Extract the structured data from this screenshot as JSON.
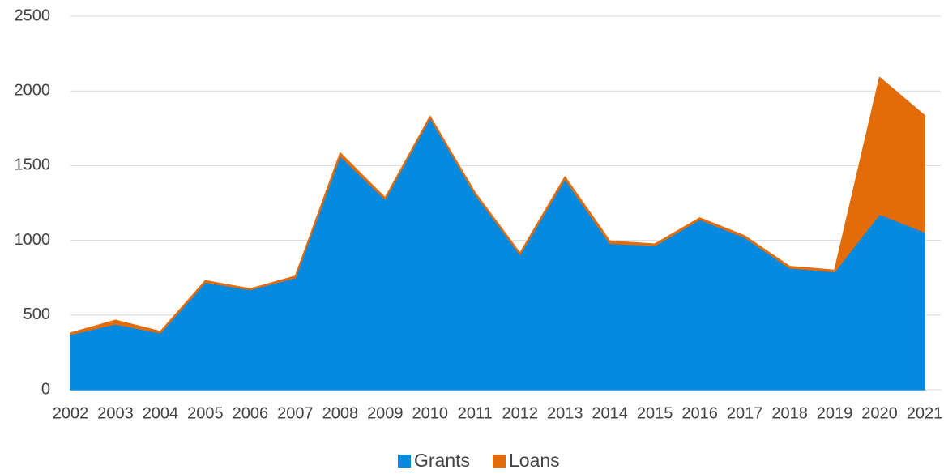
{
  "chart_data": {
    "type": "area",
    "stacked": true,
    "categories": [
      "2002",
      "2003",
      "2004",
      "2005",
      "2006",
      "2007",
      "2008",
      "2009",
      "2010",
      "2011",
      "2012",
      "2013",
      "2014",
      "2015",
      "2016",
      "2017",
      "2018",
      "2019",
      "2020",
      "2021"
    ],
    "series": [
      {
        "name": "Grants",
        "color": "#058ae0",
        "values": [
          370,
          440,
          380,
          720,
          670,
          750,
          1565,
          1275,
          1820,
          1310,
          905,
          1410,
          980,
          965,
          1140,
          1020,
          815,
          790,
          1175,
          1055
        ]
      },
      {
        "name": "Loans",
        "color": "#e36c0a",
        "values": [
          10,
          25,
          10,
          10,
          5,
          10,
          20,
          10,
          10,
          10,
          10,
          15,
          15,
          10,
          10,
          10,
          10,
          10,
          915,
          780
        ]
      }
    ],
    "ylim": [
      0,
      2500
    ],
    "yticks": [
      0,
      500,
      1000,
      1500,
      2000,
      2500
    ],
    "grid": true,
    "legend": "bottom"
  }
}
